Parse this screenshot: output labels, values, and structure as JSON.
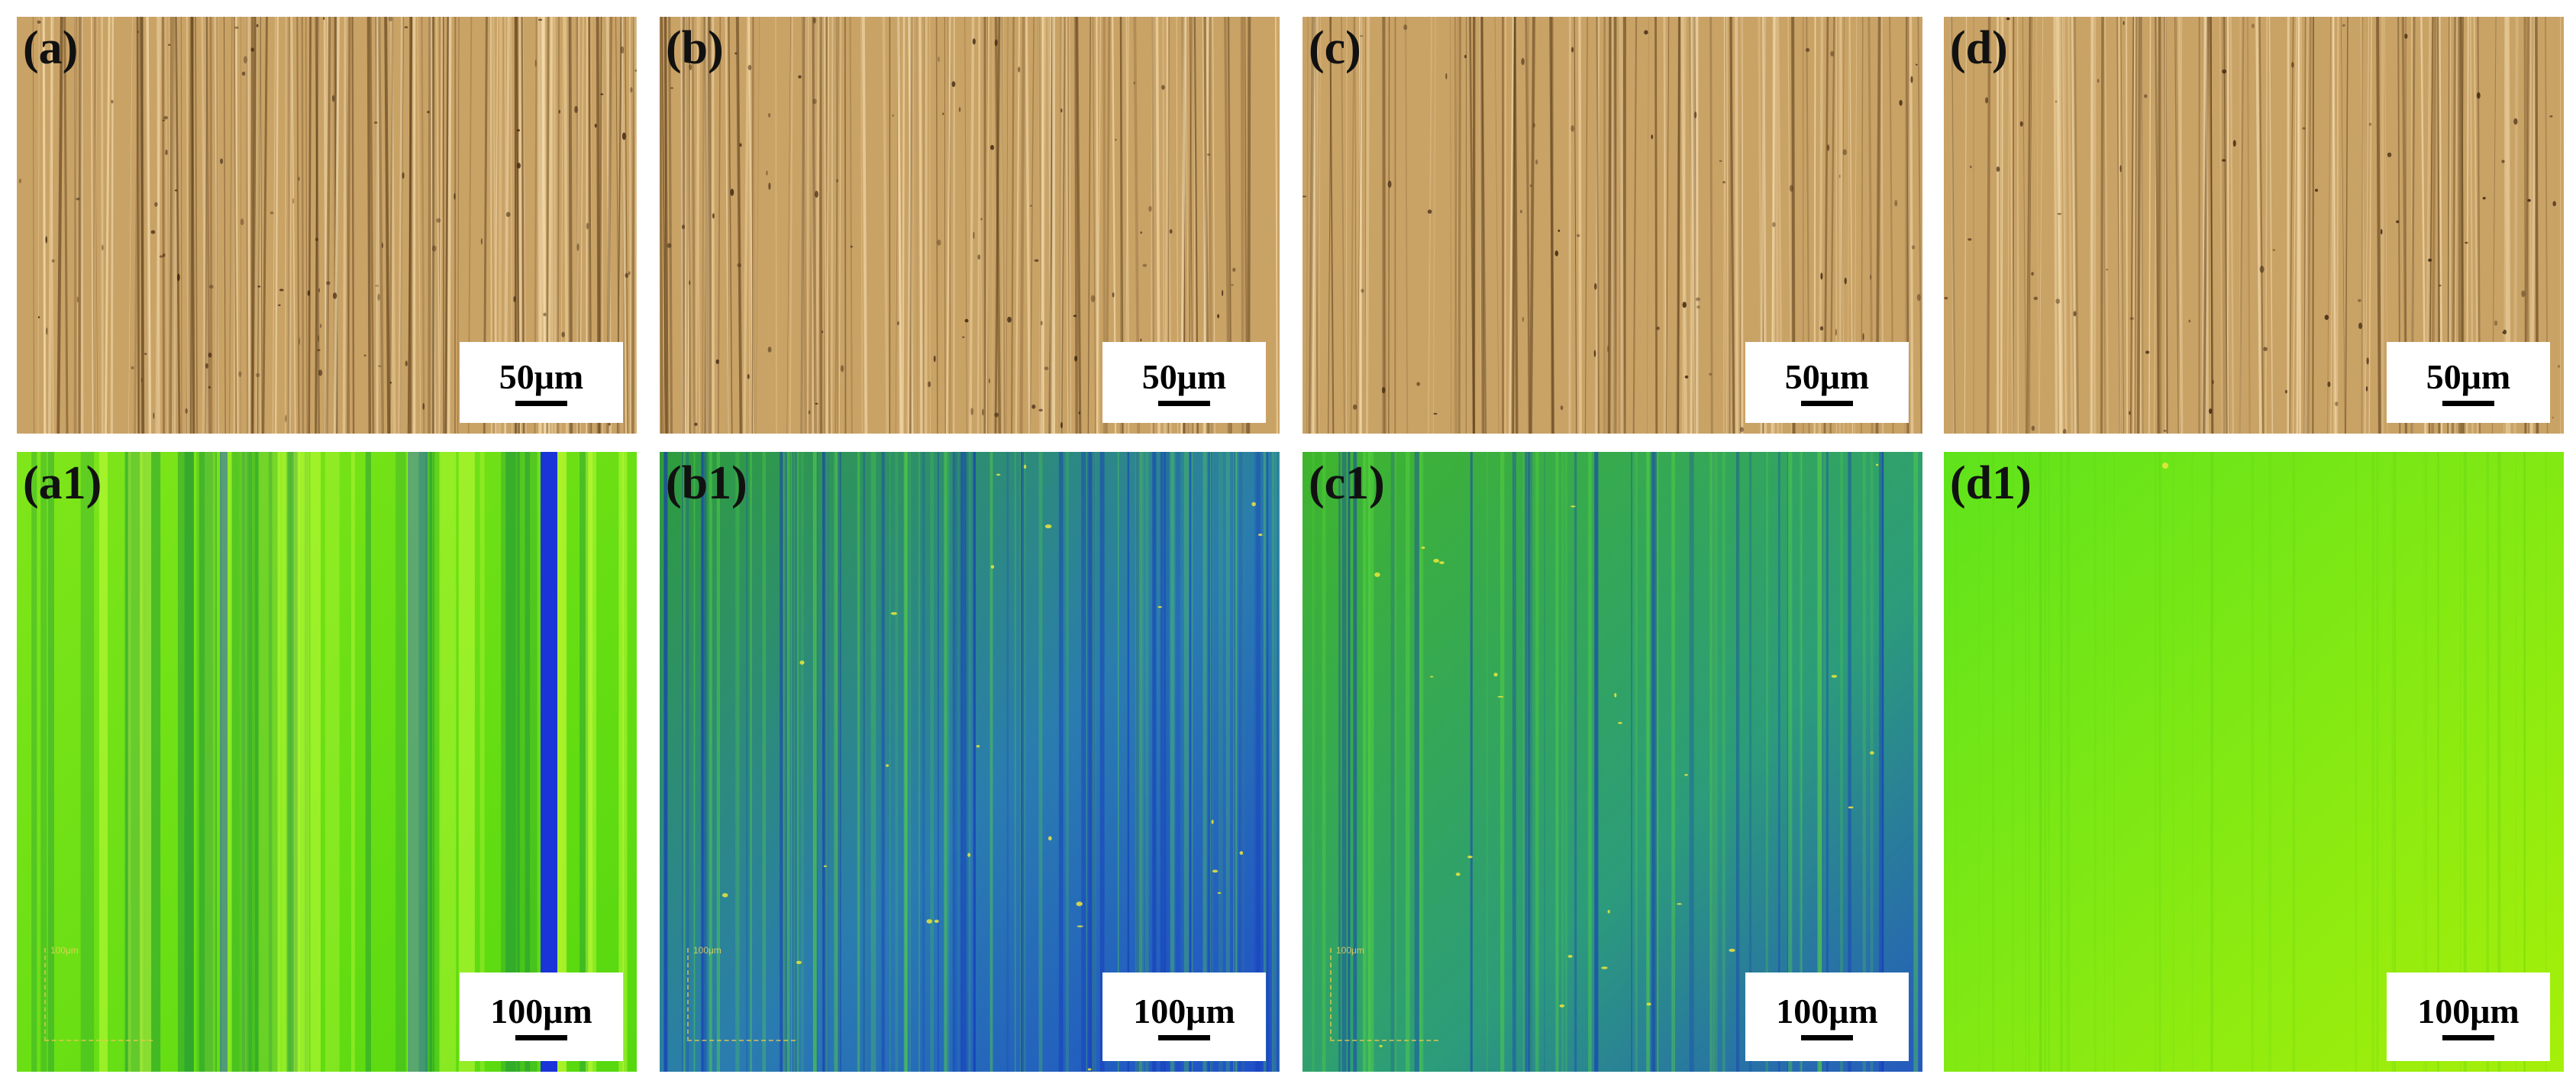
{
  "top_row": [
    {
      "label": "(a)",
      "scale": "50μm"
    },
    {
      "label": "(b)",
      "scale": "50μm"
    },
    {
      "label": "(c)",
      "scale": "50μm"
    },
    {
      "label": "(d)",
      "scale": "50μm"
    }
  ],
  "bottom_row": [
    {
      "label": "(a1)",
      "scale": "100μm",
      "inset_scale": "100μm"
    },
    {
      "label": "(b1)",
      "scale": "100μm",
      "inset_scale": "100μm"
    },
    {
      "label": "(c1)",
      "scale": "100μm",
      "inset_scale": "100μm"
    },
    {
      "label": "(d1)",
      "scale": "100μm",
      "inset_scale": ""
    }
  ],
  "colors": {
    "micrograph_base": "#c9a266",
    "height_green": "#5ee01c",
    "height_blue": "#1f3fd0",
    "height_yellow_green": "#9ef000"
  }
}
